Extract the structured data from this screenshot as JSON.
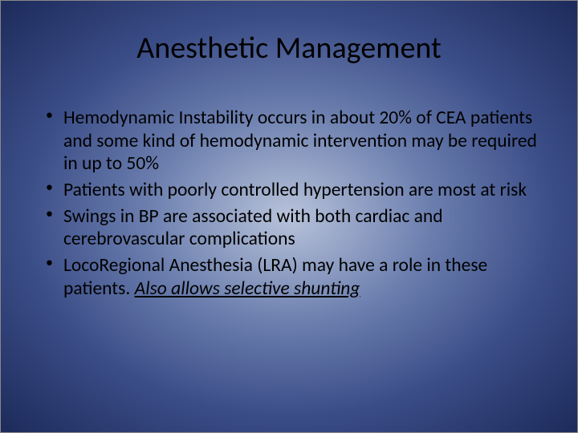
{
  "slide": {
    "title": "Anesthetic Management",
    "bullets": [
      {
        "text": "Hemodynamic Instability occurs in about 20% of CEA patients and some kind of hemodynamic intervention may be required in up to 50%"
      },
      {
        "text": "Patients with poorly controlled hypertension are most at risk"
      },
      {
        "text": "Swings in BP are associated with both cardiac and cerebrovascular complications"
      },
      {
        "pre": "LocoRegional Anesthesia (LRA) may have a role in these patients. ",
        "emph": "Also allows selective shunting"
      }
    ],
    "background": {
      "gradient_center": "#b8c3da",
      "gradient_mid": "#6b7eae",
      "gradient_outer": "#3b4d87",
      "gradient_edge": "#1c2a5a"
    },
    "typography": {
      "title_fontsize": 38,
      "body_fontsize": 23.5,
      "font_family": "Calibri",
      "text_color": "#000000"
    }
  }
}
